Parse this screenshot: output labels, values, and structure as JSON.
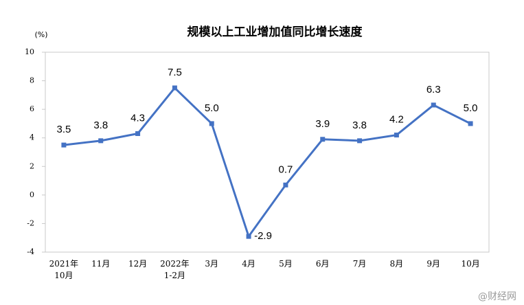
{
  "chart_data": {
    "type": "line",
    "title": "规模以上工业增加值同比增长速度",
    "y_unit": "(%)",
    "categories": [
      "2021年\n10月",
      "11月",
      "12月",
      "2022年\n1-2月",
      "3月",
      "4月",
      "5月",
      "6月",
      "7月",
      "8月",
      "9月",
      "10月"
    ],
    "values": [
      3.5,
      3.8,
      4.3,
      7.5,
      5.0,
      -2.9,
      0.7,
      3.9,
      3.8,
      4.2,
      6.3,
      5.0
    ],
    "value_labels": [
      "3.5",
      "3.8",
      "4.3",
      "7.5",
      "5.0",
      "-2.9",
      "0.7",
      "3.9",
      "3.8",
      "4.2",
      "6.3",
      "5.0"
    ],
    "color": "#4472c4",
    "ylim": [
      -4,
      10
    ],
    "yticks": [
      -4,
      -2,
      0,
      2,
      4,
      6,
      8,
      10
    ],
    "grid": false,
    "watermark": "@财经网"
  }
}
